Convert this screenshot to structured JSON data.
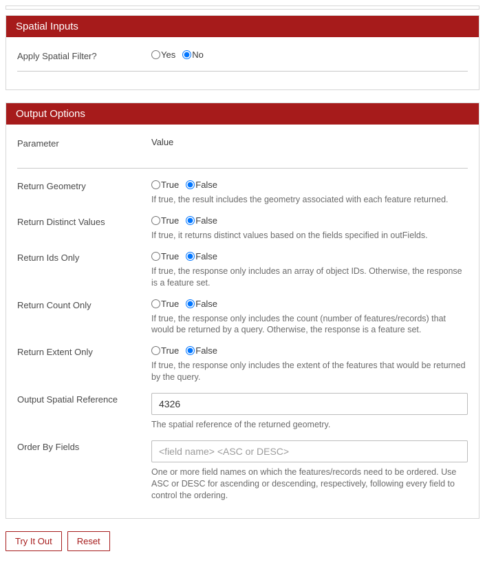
{
  "colors": {
    "accent": "#a61b1b",
    "panel_border": "#d6d6d6",
    "text": "#3b3b3b",
    "help_text": "#6b6b6b"
  },
  "spatial": {
    "header": "Spatial Inputs",
    "filter_label": "Apply Spatial Filter?",
    "yes": "Yes",
    "no": "No",
    "selected": "no"
  },
  "output": {
    "header": "Output Options",
    "param_col": "Parameter",
    "value_col": "Value",
    "true_label": "True",
    "false_label": "False",
    "rows": {
      "return_geometry": {
        "label": "Return Geometry",
        "selected": "false",
        "help": "If true, the result includes the geometry associated with each feature returned."
      },
      "return_distinct": {
        "label": "Return Distinct Values",
        "selected": "false",
        "help": "If true, it returns distinct values based on the fields specified in outFields."
      },
      "return_ids": {
        "label": "Return Ids Only",
        "selected": "false",
        "help": "If true, the response only includes an array of object IDs. Otherwise, the response is a feature set."
      },
      "return_count": {
        "label": "Return Count Only",
        "selected": "false",
        "help": "If true, the response only includes the count (number of features/records) that would be returned by a query. Otherwise, the response is a feature set."
      },
      "return_extent": {
        "label": "Return Extent Only",
        "selected": "false",
        "help": "If true, the response only includes the extent of the features that would be returned by the query."
      }
    },
    "out_sr": {
      "label": "Output Spatial Reference",
      "value": "4326",
      "help": "The spatial reference of the returned geometry."
    },
    "order_by": {
      "label": "Order By Fields",
      "value": "",
      "placeholder": "<field name> <ASC or DESC>",
      "help": "One or more field names on which the features/records need to be ordered. Use ASC or DESC for ascending or descending, respectively, following every field to control the ordering."
    }
  },
  "buttons": {
    "try": "Try It Out",
    "reset": "Reset"
  }
}
